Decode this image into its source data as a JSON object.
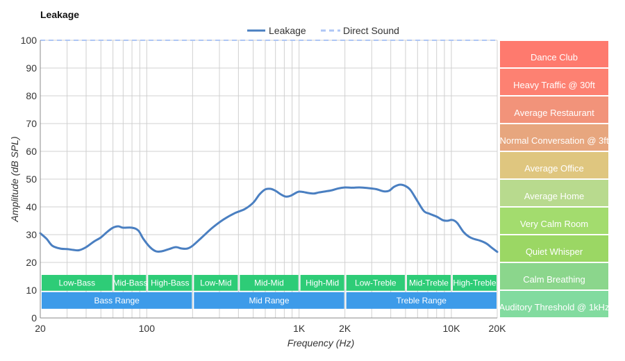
{
  "chart_data": {
    "type": "line",
    "title": "Leakage",
    "xlabel": "Frequency (Hz)",
    "ylabel": "Amplitude (dB SPL)",
    "x_scale": "log",
    "xlim": [
      20,
      20000
    ],
    "ylim": [
      0,
      100
    ],
    "x_ticks": [
      {
        "value": 20,
        "label": "20"
      },
      {
        "value": 100,
        "label": "100"
      },
      {
        "value": 1000,
        "label": "1K"
      },
      {
        "value": 2000,
        "label": "2K"
      },
      {
        "value": 10000,
        "label": "10K"
      },
      {
        "value": 20000,
        "label": "20K"
      }
    ],
    "y_ticks": [
      0,
      10,
      20,
      30,
      40,
      50,
      60,
      70,
      80,
      90,
      100
    ],
    "grid": true,
    "legend_position": "top-center",
    "series": [
      {
        "name": "Leakage",
        "color": "#4a7fc1",
        "style": "solid",
        "points": [
          [
            20,
            30.5
          ],
          [
            22,
            28.5
          ],
          [
            24,
            26
          ],
          [
            27,
            25
          ],
          [
            30,
            24.8
          ],
          [
            33,
            24.5
          ],
          [
            36,
            24.4
          ],
          [
            40,
            25.5
          ],
          [
            45,
            27.5
          ],
          [
            50,
            29
          ],
          [
            55,
            31
          ],
          [
            60,
            32.5
          ],
          [
            65,
            33
          ],
          [
            70,
            32.5
          ],
          [
            80,
            32.5
          ],
          [
            88,
            31.5
          ],
          [
            95,
            28.5
          ],
          [
            105,
            25.5
          ],
          [
            115,
            24
          ],
          [
            125,
            24
          ],
          [
            140,
            24.8
          ],
          [
            155,
            25.5
          ],
          [
            170,
            25
          ],
          [
            185,
            25
          ],
          [
            200,
            26
          ],
          [
            230,
            29
          ],
          [
            270,
            32.5
          ],
          [
            320,
            35.5
          ],
          [
            380,
            37.8
          ],
          [
            440,
            39.2
          ],
          [
            500,
            41.5
          ],
          [
            550,
            44.5
          ],
          [
            600,
            46.3
          ],
          [
            650,
            46.5
          ],
          [
            700,
            45.8
          ],
          [
            760,
            44.5
          ],
          [
            820,
            43.7
          ],
          [
            880,
            44
          ],
          [
            950,
            45
          ],
          [
            1000,
            45.5
          ],
          [
            1080,
            45.3
          ],
          [
            1150,
            45
          ],
          [
            1250,
            44.8
          ],
          [
            1350,
            45.2
          ],
          [
            1500,
            45.6
          ],
          [
            1650,
            46
          ],
          [
            1800,
            46.6
          ],
          [
            2000,
            47
          ],
          [
            2200,
            46.9
          ],
          [
            2500,
            47
          ],
          [
            2800,
            46.8
          ],
          [
            3200,
            46.4
          ],
          [
            3600,
            45.6
          ],
          [
            3900,
            45.8
          ],
          [
            4200,
            47.2
          ],
          [
            4600,
            48
          ],
          [
            5000,
            47.5
          ],
          [
            5400,
            46
          ],
          [
            6000,
            42
          ],
          [
            6600,
            38.5
          ],
          [
            7200,
            37.5
          ],
          [
            8000,
            36.5
          ],
          [
            8800,
            35.2
          ],
          [
            9400,
            35
          ],
          [
            10000,
            35.3
          ],
          [
            10500,
            35
          ],
          [
            11000,
            34
          ],
          [
            12000,
            31
          ],
          [
            13000,
            29.3
          ],
          [
            14000,
            28.5
          ],
          [
            15500,
            27.8
          ],
          [
            17000,
            26.8
          ],
          [
            18500,
            25.2
          ],
          [
            20000,
            23.8
          ]
        ]
      },
      {
        "name": "Direct Sound",
        "color": "#aec6f5",
        "style": "dashed",
        "points": [
          [
            20,
            100
          ],
          [
            20000,
            100
          ]
        ]
      }
    ],
    "frequency_bands": [
      {
        "label": "Low-Bass",
        "from": 20,
        "to": 60
      },
      {
        "label": "Mid-Bass",
        "from": 60,
        "to": 100
      },
      {
        "label": "High-Bass",
        "from": 100,
        "to": 200
      },
      {
        "label": "Low-Mid",
        "from": 200,
        "to": 400
      },
      {
        "label": "Mid-Mid",
        "from": 400,
        "to": 1000
      },
      {
        "label": "High-Mid",
        "from": 1000,
        "to": 2000
      },
      {
        "label": "Low-Treble",
        "from": 2000,
        "to": 5000
      },
      {
        "label": "Mid-Treble",
        "from": 5000,
        "to": 10000
      },
      {
        "label": "High-Treble",
        "from": 10000,
        "to": 20000
      }
    ],
    "range_bands": [
      {
        "label": "Bass Range",
        "from": 20,
        "to": 200
      },
      {
        "label": "Mid Range",
        "from": 200,
        "to": 2000
      },
      {
        "label": "Treble Range",
        "from": 2000,
        "to": 20000
      }
    ],
    "reference_levels": [
      {
        "label": "Dance Club",
        "min": 90,
        "max": 100,
        "color": "#fe7a6e"
      },
      {
        "label": "Heavy Traffic @ 30ft",
        "min": 80,
        "max": 90,
        "color": "#fd8172"
      },
      {
        "label": "Average Restaurant",
        "min": 70,
        "max": 80,
        "color": "#f2937a"
      },
      {
        "label": "Normal Conversation @ 3ft",
        "min": 60,
        "max": 70,
        "color": "#e7a67e"
      },
      {
        "label": "Average Office",
        "min": 50,
        "max": 60,
        "color": "#dfc67f"
      },
      {
        "label": "Average Home",
        "min": 40,
        "max": 50,
        "color": "#b8da8e"
      },
      {
        "label": "Very Calm Room",
        "min": 30,
        "max": 40,
        "color": "#a3dc6e"
      },
      {
        "label": "Quiet Whisper",
        "min": 20,
        "max": 30,
        "color": "#9bd764"
      },
      {
        "label": "Calm Breathing",
        "min": 10,
        "max": 20,
        "color": "#8bd68c"
      },
      {
        "label": "Auditory Threshold @ 1kHz",
        "min": 0,
        "max": 10,
        "color": "#82db9f"
      }
    ],
    "colors": {
      "band_fill": "#2ecc77",
      "range_fill": "#3d9be9",
      "grid": "#d0d0d0",
      "axis": "#888888",
      "text": "#333333"
    }
  }
}
